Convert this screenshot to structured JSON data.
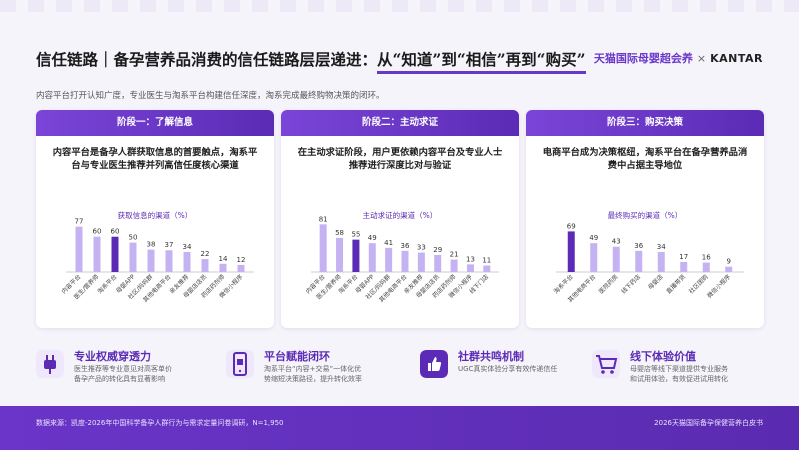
{
  "header": {
    "title_prefix": "信任链路｜备孕营养品消费的信任链路层层递进：",
    "title_highlight": "从“知道”到“相信”再到“购买”",
    "brand_logo": "天猫国际母婴超会养",
    "brand_x": "×",
    "brand_partner": "KANTAR"
  },
  "subtitle": "内容平台打开认知广度，专业医生与淘系平台构建信任深度，淘系完成最终购物决策的闭环。",
  "stages": [
    {
      "tab": "阶段一：了解信息",
      "desc": "内容平台是备孕人群获取信息的首要触点，淘系平台与专业医生推荐并列高信任度核心渠道"
    },
    {
      "tab": "阶段二：主动求证",
      "desc": "在主动求证阶段，用户更依赖内容平台及专业人士推荐进行深度比对与验证"
    },
    {
      "tab": "阶段三：购买决策",
      "desc": "电商平台成为决策枢纽，淘系平台在备孕营养品消费中占据主导地位"
    }
  ],
  "chart_data": [
    {
      "type": "bar",
      "title": "获取信息的渠道（%）",
      "categories": [
        "内容平台",
        "医生/营养师",
        "淘系平台",
        "母婴APP",
        "社区/妈妈群",
        "其他电商平台",
        "亲友推荐",
        "母婴店店员",
        "药店药剂师",
        "微信小程序"
      ],
      "values": [
        77,
        60,
        60,
        50,
        38,
        37,
        34,
        22,
        14,
        12
      ],
      "highlight_index": 2,
      "color": "#c4b2f2",
      "highlight_color": "#5b2bb5"
    },
    {
      "type": "bar",
      "title": "主动求证的渠道（%）",
      "categories": [
        "内容平台",
        "医生/营养师",
        "淘系平台",
        "母婴APP",
        "社区/妈妈群",
        "其他电商平台",
        "亲友推荐",
        "母婴店店员",
        "药店药剂师",
        "微信小程序",
        "线下门店"
      ],
      "values": [
        81,
        58,
        55,
        49,
        41,
        36,
        33,
        29,
        21,
        13,
        11
      ],
      "highlight_index": 2,
      "color": "#c4b2f2",
      "highlight_color": "#5b2bb5"
    },
    {
      "type": "bar",
      "title": "最终购买的渠道（%）",
      "categories": [
        "淘系平台",
        "其他电商平台",
        "医院药房",
        "线下药店",
        "母婴店",
        "直播带货",
        "社区团购",
        "微信小程序"
      ],
      "values": [
        69,
        49,
        43,
        36,
        34,
        17,
        16,
        9
      ],
      "highlight_index": 0,
      "color": "#c4b2f2",
      "highlight_color": "#5b2bb5"
    }
  ],
  "features": [
    {
      "icon": "plug-icon",
      "title": "专业权威穿透力",
      "desc1": "医生推荐等专业意见对高客单价",
      "desc2": "备孕产品的转化具有显著影响"
    },
    {
      "icon": "phone-icon",
      "title": "平台赋能闭环",
      "desc1": "淘系平台“内容+交易”一体化优",
      "desc2": "势缩短决策路径，提升转化效率"
    },
    {
      "icon": "thumbs-up-icon",
      "title": "社群共鸣机制",
      "desc1": "UGC真实体验分享有效传递信任",
      "desc2": ""
    },
    {
      "icon": "cart-icon",
      "title": "线下体验价值",
      "desc1": "母婴店等线下渠道提供专业服务",
      "desc2": "和试用体验，有效促进试用转化"
    }
  ],
  "footer": {
    "note": "数据来源：凯度-2026年中国科学备孕人群行为与需求定量问卷调研，N=1,950",
    "report": "2026天猫国际备孕保健营养白皮书"
  },
  "colors": {
    "primary": "#5b2bb5",
    "bar": "#c4b2f2",
    "footer": "#6a35c8"
  }
}
